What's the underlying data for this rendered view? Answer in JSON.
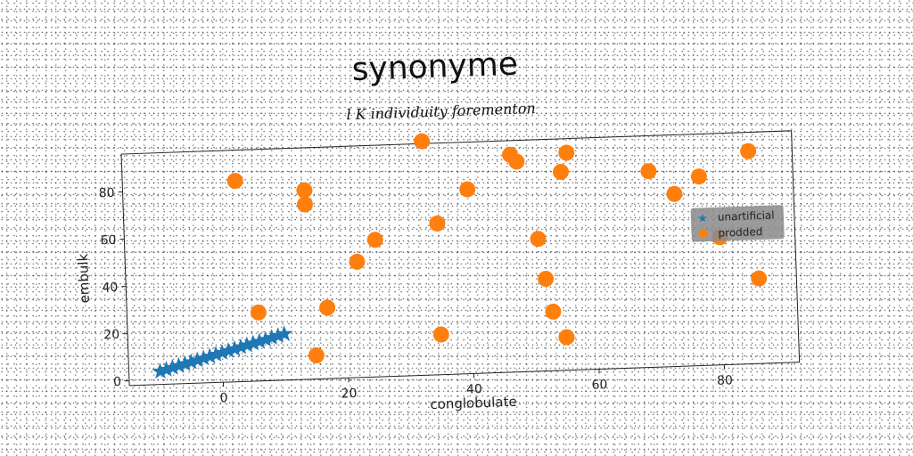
{
  "chart_data": {
    "type": "scatter",
    "title": "synonyme",
    "subtitle": "l K individuity forementon",
    "xlabel": "conglobulate",
    "ylabel": "embulk",
    "xlim": [
      -15,
      92
    ],
    "ylim": [
      -2,
      96
    ],
    "xticks": [
      0,
      20,
      40,
      60,
      80
    ],
    "yticks": [
      0,
      20,
      40,
      60,
      80
    ],
    "grid": false,
    "legend_position": "right",
    "series": [
      {
        "name": "unartificial",
        "marker": "star",
        "color": "#1f77b4",
        "points": [
          [
            -10,
            3.5
          ],
          [
            -9,
            4.2
          ],
          [
            -8,
            4.9
          ],
          [
            -7,
            5.6
          ],
          [
            -6,
            6.3
          ],
          [
            -5,
            7.0
          ],
          [
            -4,
            7.7
          ],
          [
            -3,
            8.4
          ],
          [
            -2,
            9.1
          ],
          [
            -1,
            9.8
          ],
          [
            0,
            10.5
          ],
          [
            1,
            11.2
          ],
          [
            2,
            11.9
          ],
          [
            3,
            12.6
          ],
          [
            4,
            13.3
          ],
          [
            5,
            14.0
          ],
          [
            6,
            14.7
          ],
          [
            7,
            15.4
          ],
          [
            8,
            16.1
          ],
          [
            9,
            16.8
          ],
          [
            10,
            17.5
          ]
        ]
      },
      {
        "name": "prodded",
        "marker": "circle",
        "color": "#ff7f0e",
        "points": [
          [
            3,
            83
          ],
          [
            6,
            27
          ],
          [
            14,
            78
          ],
          [
            14,
            72
          ],
          [
            15,
            8
          ],
          [
            17,
            28
          ],
          [
            22,
            47
          ],
          [
            25,
            56
          ],
          [
            33,
            97
          ],
          [
            35,
            15
          ],
          [
            35,
            62
          ],
          [
            40,
            76
          ],
          [
            47,
            90
          ],
          [
            48,
            87
          ],
          [
            51,
            54
          ],
          [
            52,
            37
          ],
          [
            53,
            23
          ],
          [
            55,
            12
          ],
          [
            55,
            82
          ],
          [
            56,
            90
          ],
          [
            69,
            81
          ],
          [
            73,
            71
          ],
          [
            77,
            78
          ],
          [
            80,
            52
          ],
          [
            85,
            88
          ],
          [
            86,
            34
          ]
        ]
      }
    ]
  }
}
